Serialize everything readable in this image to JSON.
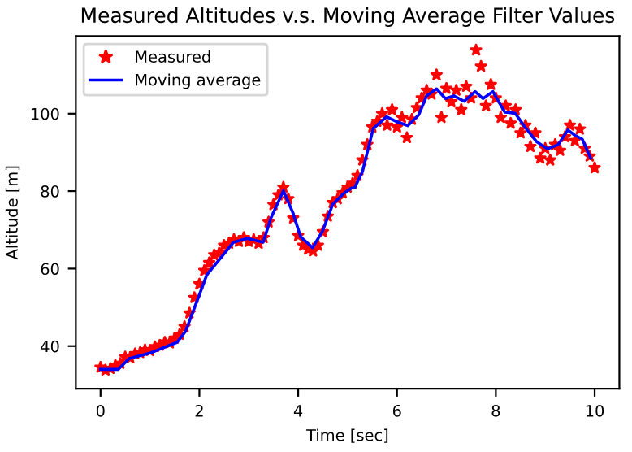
{
  "chart_data": {
    "type": "line",
    "title": "Measured Altitudes v.s. Moving Average Filter Values",
    "xlabel": "Time [sec]",
    "ylabel": "Altitude [m]",
    "xlim": [
      -0.5,
      10.5
    ],
    "xticks": [
      0,
      2,
      4,
      6,
      8,
      10
    ],
    "ylim": [
      29,
      120
    ],
    "yticks": [
      40,
      60,
      80,
      100
    ],
    "grid": false,
    "legend": "top left",
    "series": [
      {
        "name": "Measured",
        "type": "scatter",
        "marker": "star",
        "color": "#ff0000",
        "x": [
          0,
          0.1,
          0.2,
          0.3,
          0.4,
          0.5,
          0.6,
          0.7,
          0.8,
          0.9,
          1.0,
          1.1,
          1.2,
          1.3,
          1.4,
          1.5,
          1.6,
          1.7,
          1.8,
          1.9,
          2.0,
          2.1,
          2.2,
          2.3,
          2.4,
          2.5,
          2.6,
          2.7,
          2.8,
          2.9,
          3.0,
          3.1,
          3.2,
          3.3,
          3.4,
          3.5,
          3.6,
          3.7,
          3.8,
          3.9,
          4.0,
          4.1,
          4.2,
          4.3,
          4.4,
          4.5,
          4.6,
          4.7,
          4.8,
          4.9,
          5.0,
          5.1,
          5.2,
          5.3,
          5.4,
          5.5,
          5.6,
          5.7,
          5.8,
          5.9,
          6.0,
          6.1,
          6.2,
          6.3,
          6.4,
          6.5,
          6.6,
          6.7,
          6.8,
          6.9,
          7.0,
          7.1,
          7.2,
          7.3,
          7.4,
          7.5,
          7.6,
          7.7,
          7.8,
          7.9,
          8.0,
          8.1,
          8.2,
          8.3,
          8.4,
          8.5,
          8.6,
          8.7,
          8.8,
          8.9,
          9.0,
          9.1,
          9.2,
          9.3,
          9.4,
          9.5,
          9.6,
          9.7,
          9.8,
          9.9,
          10.0
        ],
        "values": [
          34.5,
          33.8,
          34.2,
          35.0,
          35.5,
          37.2,
          37.0,
          38.0,
          38.3,
          39.0,
          38.8,
          39.8,
          40.2,
          41.0,
          40.8,
          42.0,
          43.0,
          45.0,
          48.5,
          52.5,
          56.0,
          59.5,
          61.5,
          63.5,
          64.0,
          66.0,
          66.5,
          67.5,
          67.0,
          68.0,
          67.0,
          67.5,
          66.5,
          68.0,
          72.0,
          76.5,
          79.0,
          81.0,
          78.0,
          73.0,
          68.5,
          66.0,
          65.0,
          64.5,
          66.0,
          69.5,
          73.5,
          77.0,
          78.0,
          79.5,
          81.0,
          82.0,
          84.0,
          88.0,
          92.0,
          96.5,
          98.0,
          100.0,
          97.0,
          101.0,
          96.5,
          99.0,
          93.8,
          98.5,
          101.5,
          104.0,
          106.0,
          105.0,
          110.0,
          99.0,
          106.5,
          103.0,
          106.0,
          101.0,
          107.0,
          104.0,
          116.4,
          112.2,
          102.0,
          107.5,
          104.0,
          99.0,
          102.0,
          97.5,
          101.0,
          95.0,
          97.0,
          91.5,
          95.0,
          88.5,
          91.0,
          88.0,
          92.0,
          90.5,
          94.0,
          97.0,
          93.0,
          96.0,
          91.0,
          89.0,
          86.0
        ]
      },
      {
        "name": "Moving average",
        "marker": "none",
        "line_style": "solid",
        "color": "#0000ff",
        "x": [
          0,
          0.36,
          0.58,
          1.0,
          1.55,
          1.72,
          1.99,
          2.15,
          2.42,
          2.69,
          2.97,
          3.29,
          3.45,
          3.7,
          3.89,
          4.05,
          4.29,
          4.49,
          4.7,
          4.92,
          5.08,
          5.14,
          5.3,
          5.52,
          5.79,
          6.0,
          6.22,
          6.44,
          6.6,
          6.8,
          6.98,
          7.15,
          7.36,
          7.58,
          7.74,
          7.94,
          8.18,
          8.39,
          8.61,
          8.83,
          9.05,
          9.26,
          9.46,
          9.59,
          9.75,
          9.92
        ],
        "values": [
          34.0,
          34.0,
          36.8,
          38.2,
          41.0,
          43.8,
          52.9,
          58.4,
          62.6,
          66.8,
          67.8,
          66.8,
          73.1,
          80.1,
          74.5,
          68.2,
          65.4,
          69.6,
          76.6,
          79.4,
          80.8,
          80.8,
          85.0,
          96.2,
          99.2,
          97.9,
          96.9,
          99.7,
          104.6,
          106.4,
          103.9,
          104.6,
          103.2,
          105.7,
          103.9,
          105.7,
          100.4,
          100.1,
          96.2,
          92.7,
          90.9,
          92.0,
          95.8,
          94.5,
          93.4,
          88.5
        ]
      }
    ]
  }
}
